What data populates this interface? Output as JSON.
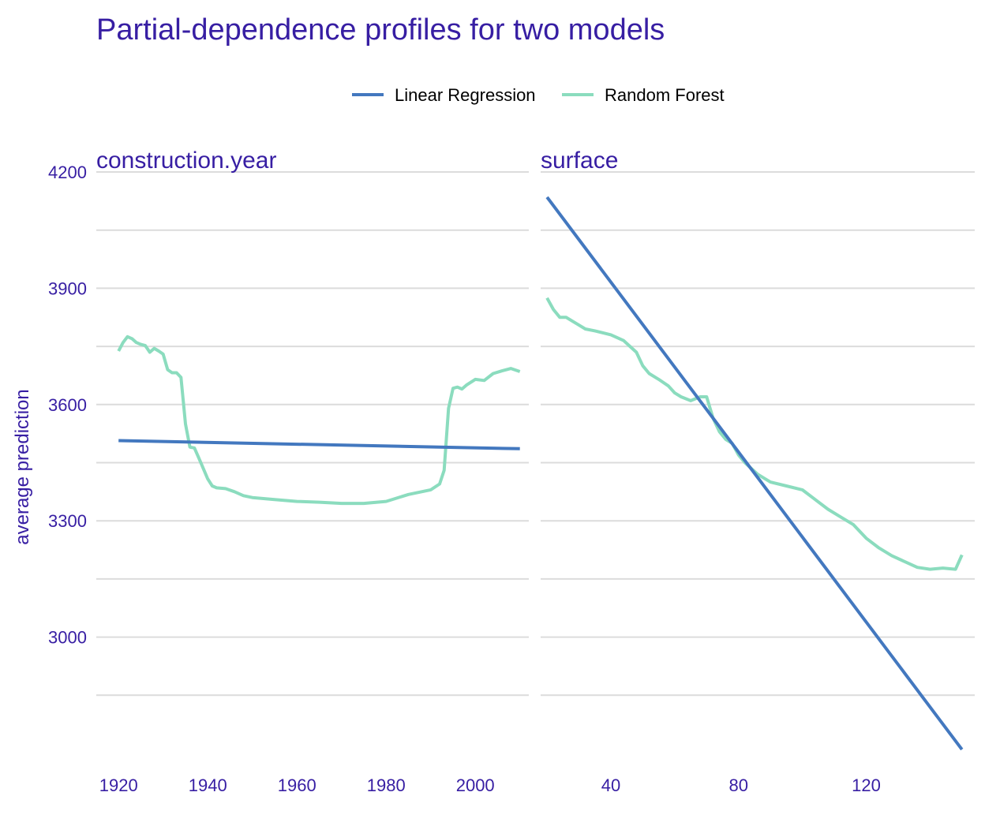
{
  "chart_data": {
    "type": "line",
    "title": "Partial-dependence profiles for two models",
    "ylabel": "average prediction",
    "ylim": [
      2700,
      4200
    ],
    "y_ticks": [
      3000,
      3300,
      3600,
      3900,
      4200
    ],
    "grid": true,
    "legend_position": "top",
    "colors": {
      "title": "#371ea3",
      "axis_text": "#371ea3",
      "grid": "#dcdcdc",
      "Linear Regression": "#4378bf",
      "Random Forest": "#8bdcbe"
    },
    "legend": [
      {
        "name": "Linear Regression",
        "color": "#4378bf"
      },
      {
        "name": "Random Forest",
        "color": "#8bdcbe"
      }
    ],
    "panels": [
      {
        "title": "construction.year",
        "xlim": [
          1915,
          2012
        ],
        "x_ticks": [
          1920,
          1940,
          1960,
          1980,
          2000
        ],
        "series": [
          {
            "name": "Linear Regression",
            "x": [
              1920,
              2010
            ],
            "y": [
              3507,
              3486
            ]
          },
          {
            "name": "Random Forest",
            "x": [
              1920,
              1921,
              1922,
              1923,
              1924,
              1925,
              1926,
              1927,
              1928,
              1929,
              1930,
              1931,
              1932,
              1933,
              1934,
              1935,
              1936,
              1937,
              1938,
              1939,
              1940,
              1941,
              1942,
              1944,
              1946,
              1948,
              1950,
              1955,
              1960,
              1965,
              1970,
              1975,
              1980,
              1985,
              1990,
              1992,
              1993,
              1994,
              1995,
              1996,
              1997,
              1998,
              2000,
              2002,
              2004,
              2006,
              2008,
              2010
            ],
            "y": [
              3738,
              3760,
              3775,
              3770,
              3760,
              3755,
              3752,
              3735,
              3745,
              3738,
              3730,
              3690,
              3682,
              3682,
              3670,
              3550,
              3490,
              3488,
              3462,
              3435,
              3408,
              3390,
              3385,
              3383,
              3375,
              3365,
              3360,
              3355,
              3350,
              3348,
              3345,
              3345,
              3350,
              3368,
              3380,
              3395,
              3430,
              3590,
              3642,
              3645,
              3640,
              3650,
              3665,
              3662,
              3680,
              3687,
              3693,
              3685
            ]
          }
        ]
      },
      {
        "title": "surface",
        "xlim": [
          18,
          154
        ],
        "x_ticks": [
          40,
          80,
          120
        ],
        "series": [
          {
            "name": "Linear Regression",
            "x": [
              20,
              150
            ],
            "y": [
              4135,
              2710
            ]
          },
          {
            "name": "Random Forest",
            "x": [
              20,
              22,
              24,
              26,
              28,
              30,
              32,
              35,
              40,
              44,
              46,
              48,
              50,
              52,
              55,
              58,
              60,
              62,
              65,
              68,
              70,
              72,
              74,
              76,
              78,
              80,
              82,
              84,
              86,
              88,
              90,
              95,
              100,
              104,
              108,
              112,
              116,
              120,
              124,
              128,
              132,
              136,
              140,
              144,
              148,
              150
            ],
            "y": [
              3875,
              3845,
              3825,
              3825,
              3815,
              3805,
              3795,
              3790,
              3780,
              3765,
              3750,
              3735,
              3700,
              3680,
              3665,
              3648,
              3630,
              3620,
              3610,
              3620,
              3620,
              3565,
              3530,
              3510,
              3500,
              3470,
              3450,
              3435,
              3420,
              3410,
              3400,
              3390,
              3380,
              3355,
              3330,
              3310,
              3290,
              3255,
              3230,
              3210,
              3195,
              3180,
              3175,
              3178,
              3175,
              3212
            ]
          }
        ]
      }
    ]
  }
}
